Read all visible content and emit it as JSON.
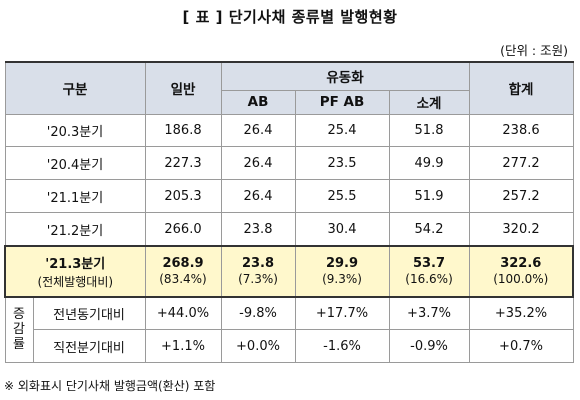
{
  "title": "[ 표 ] 단기사채 종류별 발행현황",
  "unit": "(단위 : 조원)",
  "header": {
    "category": "구분",
    "general": "일반",
    "fx": "유동화",
    "ab": "AB",
    "pfab": "PF AB",
    "subtotal": "소계",
    "total": "합계"
  },
  "rows": [
    {
      "label": "'20.3분기",
      "general": "186.8",
      "ab": "26.4",
      "pfab": "25.4",
      "subtotal": "51.8",
      "total": "238.6"
    },
    {
      "label": "'20.4분기",
      "general": "227.3",
      "ab": "26.4",
      "pfab": "23.5",
      "subtotal": "49.9",
      "total": "277.2"
    },
    {
      "label": "'21.1분기",
      "general": "205.3",
      "ab": "26.4",
      "pfab": "25.5",
      "subtotal": "51.9",
      "total": "257.2"
    },
    {
      "label": "'21.2분기",
      "general": "266.0",
      "ab": "23.8",
      "pfab": "30.4",
      "subtotal": "54.2",
      "total": "320.2"
    }
  ],
  "highlight": {
    "label": "'21.3분기",
    "sublabel": "(전체발행대비)",
    "general": "268.9",
    "general_pct": "(83.4%)",
    "ab": "23.8",
    "ab_pct": "(7.3%)",
    "pfab": "29.9",
    "pfab_pct": "(9.3%)",
    "subtotal": "53.7",
    "subtotal_pct": "(16.6%)",
    "total": "322.6",
    "total_pct": "(100.0%)"
  },
  "change": {
    "group_label_1": "증",
    "group_label_2": "감",
    "group_label_3": "률",
    "yoy": {
      "label": "전년동기대비",
      "general": "+44.0%",
      "ab": "-9.8%",
      "pfab": "+17.7%",
      "subtotal": "+3.7%",
      "total": "+35.2%"
    },
    "qoq": {
      "label": "직전분기대비",
      "general": "+1.1%",
      "ab": "+0.0%",
      "pfab": "-1.6%",
      "subtotal": "-0.9%",
      "total": "+0.7%"
    }
  },
  "footnote": "※ 외화표시 단기사채 발행금액(환산) 포함"
}
